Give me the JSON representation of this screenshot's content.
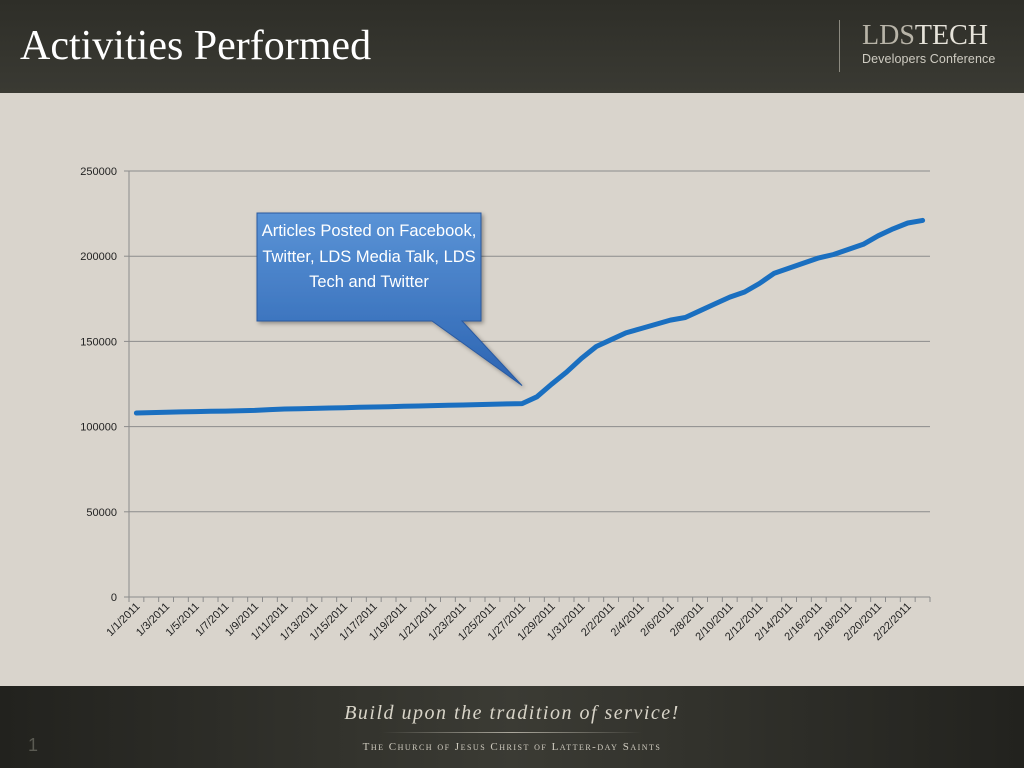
{
  "slide": {
    "title": "Activities Performed",
    "logo": {
      "lds": "LDS",
      "tech": "TECH",
      "subtitle": "Developers Conference"
    },
    "footer": {
      "tagline": "Build upon the tradition of service!",
      "church": "The Church of Jesus Christ of Latter-day Saints"
    },
    "slide_number": "1"
  },
  "colors": {
    "line": "#1a6fc0",
    "callout_top": "#5a93d6",
    "callout_bottom": "#2c64b2",
    "background": "#d9d4cc",
    "gridline": "#8c8c8c"
  },
  "chart_data": {
    "type": "line",
    "title": "",
    "xlabel": "",
    "ylabel": "",
    "ylim": [
      0,
      250000
    ],
    "yticks": [
      0,
      50000,
      100000,
      150000,
      200000,
      250000
    ],
    "grid": true,
    "legend": "none",
    "x": [
      "1/1/2011",
      "1/2/2011",
      "1/3/2011",
      "1/4/2011",
      "1/5/2011",
      "1/6/2011",
      "1/7/2011",
      "1/8/2011",
      "1/9/2011",
      "1/10/2011",
      "1/11/2011",
      "1/12/2011",
      "1/13/2011",
      "1/14/2011",
      "1/15/2011",
      "1/16/2011",
      "1/17/2011",
      "1/18/2011",
      "1/19/2011",
      "1/20/2011",
      "1/21/2011",
      "1/22/2011",
      "1/23/2011",
      "1/24/2011",
      "1/25/2011",
      "1/26/2011",
      "1/27/2011",
      "1/28/2011",
      "1/29/2011",
      "1/30/2011",
      "1/31/2011",
      "2/1/2011",
      "2/2/2011",
      "2/3/2011",
      "2/4/2011",
      "2/5/2011",
      "2/6/2011",
      "2/7/2011",
      "2/8/2011",
      "2/9/2011",
      "2/10/2011",
      "2/11/2011",
      "2/12/2011",
      "2/13/2011",
      "2/14/2011",
      "2/15/2011",
      "2/16/2011",
      "2/17/2011",
      "2/18/2011",
      "2/19/2011",
      "2/20/2011",
      "2/21/2011",
      "2/22/2011",
      "2/23/2011"
    ],
    "x_tick_labels": [
      "1/1/2011",
      "1/3/2011",
      "1/5/2011",
      "1/7/2011",
      "1/9/2011",
      "1/11/2011",
      "1/13/2011",
      "1/15/2011",
      "1/17/2011",
      "1/19/2011",
      "1/21/2011",
      "1/23/2011",
      "1/25/2011",
      "1/27/2011",
      "1/29/2011",
      "1/31/2011",
      "2/2/2011",
      "2/4/2011",
      "2/6/2011",
      "2/8/2011",
      "2/10/2011",
      "2/12/2011",
      "2/14/2011",
      "2/16/2011",
      "2/18/2011",
      "2/20/2011",
      "2/22/2011"
    ],
    "series": [
      {
        "values": [
          108000,
          108200,
          108400,
          108600,
          108800,
          109000,
          109100,
          109300,
          109500,
          110000,
          110300,
          110500,
          110700,
          110900,
          111100,
          111300,
          111500,
          111700,
          111900,
          112100,
          112300,
          112500,
          112700,
          112900,
          113100,
          113300,
          113500,
          117500,
          125000,
          132000,
          140000,
          147000,
          151000,
          155000,
          157500,
          160000,
          162500,
          164000,
          168000,
          172000,
          176000,
          179000,
          184000,
          190000,
          193000,
          196000,
          199000,
          201000,
          204000,
          207000,
          212000,
          216000,
          219500,
          221000
        ]
      }
    ],
    "annotations": [
      {
        "text": "Articles Posted on Facebook, Twitter, LDS Media Talk, LDS Tech and Twitter",
        "points_to_x": "1/27/2011"
      }
    ]
  }
}
